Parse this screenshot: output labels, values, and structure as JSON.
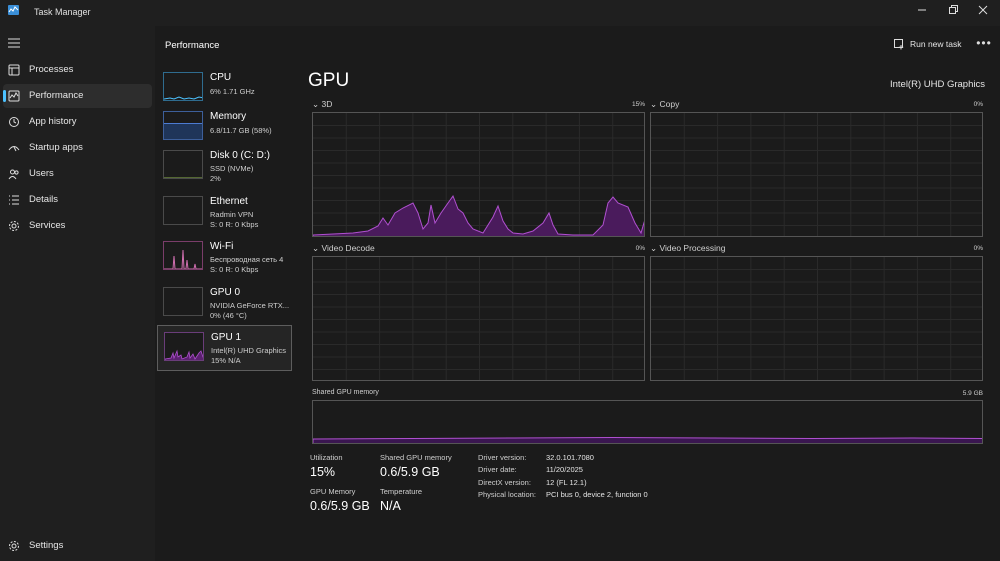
{
  "window": {
    "title": "Task Manager",
    "controls": [
      "minimize",
      "restore",
      "close"
    ]
  },
  "nav": {
    "items": [
      {
        "label": "Processes",
        "icon": "processes-icon"
      },
      {
        "label": "Performance",
        "icon": "performance-icon",
        "active": true
      },
      {
        "label": "App history",
        "icon": "history-icon"
      },
      {
        "label": "Startup apps",
        "icon": "startup-icon"
      },
      {
        "label": "Users",
        "icon": "users-icon"
      },
      {
        "label": "Details",
        "icon": "details-icon"
      },
      {
        "label": "Services",
        "icon": "services-icon"
      }
    ],
    "settings_label": "Settings"
  },
  "header": {
    "title": "Performance",
    "run_task_label": "Run new task",
    "more_label": "•••"
  },
  "devices": [
    {
      "name": "CPU",
      "lines": [
        "6% 1.71 GHz"
      ],
      "color": "#4cc2ff"
    },
    {
      "name": "Memory",
      "lines": [
        "6.8/11.7 GB (58%)"
      ],
      "color": "#4c7bd1"
    },
    {
      "name": "Disk 0 (C: D:)",
      "lines": [
        "SSD (NVMe)",
        "2%"
      ],
      "color": "#8bb34a"
    },
    {
      "name": "Ethernet",
      "lines": [
        "Radmin VPN",
        "S: 0 R: 0 Kbps"
      ],
      "color": "#b08a4a"
    },
    {
      "name": "Wi-Fi",
      "lines": [
        "Беспроводная сеть 4",
        "S: 0 R: 0 Kbps"
      ],
      "color": "#d06fb0"
    },
    {
      "name": "GPU 0",
      "lines": [
        "NVIDIA GeForce RTX...",
        "0% (46 °C)"
      ],
      "color": "#a040c0"
    },
    {
      "name": "GPU 1",
      "lines": [
        "Intel(R) UHD Graphics",
        "15% N/A"
      ],
      "color": "#a040c0",
      "selected": true
    }
  ],
  "gpu": {
    "title": "GPU",
    "model": "Intel(R) UHD Graphics",
    "accent": "#a040c0",
    "engines": [
      {
        "label": "3D",
        "pct": "15%"
      },
      {
        "label": "Copy",
        "pct": "0%"
      },
      {
        "label": "Video Decode",
        "pct": "0%"
      },
      {
        "label": "Video Processing",
        "pct": "0%"
      }
    ],
    "shared_memory": {
      "label": "Shared GPU memory",
      "max": "5.9 GB"
    }
  },
  "stats": {
    "utilization": {
      "label": "Utilization",
      "value": "15%"
    },
    "shared_gpu_memory": {
      "label": "Shared GPU memory",
      "value": "0.6/5.9 GB"
    },
    "gpu_memory": {
      "label": "GPU Memory",
      "value": "0.6/5.9 GB"
    },
    "temperature": {
      "label": "Temperature",
      "value": "N/A"
    }
  },
  "info": [
    {
      "key": "Driver version:",
      "value": "32.0.101.7080"
    },
    {
      "key": "Driver date:",
      "value": "11/20/2025"
    },
    {
      "key": "DirectX version:",
      "value": "12 (FL 12.1)"
    },
    {
      "key": "Physical location:",
      "value": "PCI bus 0, device 2, function 0"
    }
  ]
}
